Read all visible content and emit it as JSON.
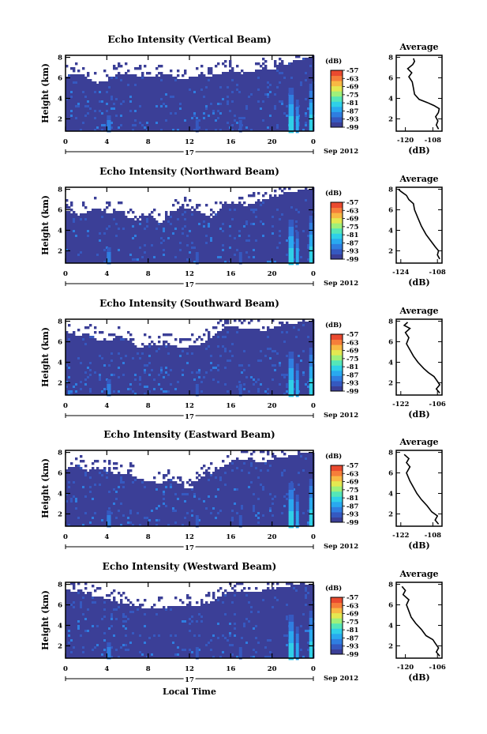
{
  "colors": {
    "colormap": [
      "#3b3f97",
      "#3559c0",
      "#2f7ee0",
      "#29a9ef",
      "#2fd0e8",
      "#55e6b8",
      "#9ff07a",
      "#e4e851",
      "#f8b944",
      "#f67e3a",
      "#ea4a2f"
    ],
    "background": "#ffffff",
    "axis": "#000000"
  },
  "date_label": "Sep 2012",
  "xlabel_bottom": "Local Time",
  "chart_data": [
    {
      "id": "vertical",
      "type": "heatmap",
      "title": "Echo Intensity (Vertical Beam)",
      "ylabel": "Height (km)",
      "x_ticks": [
        "0",
        "4",
        "8",
        "12",
        "16",
        "20",
        "0"
      ],
      "x_range_hours": [
        0,
        24
      ],
      "day_label": "17",
      "y_ticks": [
        "2",
        "4",
        "6",
        "8"
      ],
      "ylim": [
        0.8,
        8.2
      ],
      "colorbar": {
        "unit": "(dB)",
        "ticks": [
          "-57",
          "-63",
          "-69",
          "-75",
          "-81",
          "-87",
          "-93",
          "-99"
        ],
        "range": [
          -99,
          -57
        ]
      },
      "echo_top_km": [
        [
          0,
          6.2
        ],
        [
          1,
          6.4
        ],
        [
          2,
          6.0
        ],
        [
          3,
          5.5
        ],
        [
          4,
          5.8
        ],
        [
          5,
          6.5
        ],
        [
          6,
          6.3
        ],
        [
          7,
          6.2
        ],
        [
          8,
          6.0
        ],
        [
          9,
          6.2
        ],
        [
          10,
          6.4
        ],
        [
          11,
          5.8
        ],
        [
          12,
          6.0
        ],
        [
          13,
          6.3
        ],
        [
          14,
          6.1
        ],
        [
          15,
          6.5
        ],
        [
          16,
          6.8
        ],
        [
          17,
          6.4
        ],
        [
          18,
          6.6
        ],
        [
          19,
          7.0
        ],
        [
          20,
          6.8
        ],
        [
          21,
          7.2
        ],
        [
          22,
          7.6
        ],
        [
          23,
          7.9
        ],
        [
          24,
          8.0
        ]
      ],
      "average": {
        "title": "Average",
        "xlabel": "(dB)",
        "x_ticks": [
          "-120",
          "-108"
        ],
        "xlim": [
          -124,
          -104
        ],
        "y_ticks": [
          "2",
          "4",
          "6",
          "8"
        ],
        "ylim": [
          0.8,
          8.2
        ],
        "profile": [
          [
            -105.5,
            1.0
          ],
          [
            -106.5,
            1.4
          ],
          [
            -105.8,
            1.8
          ],
          [
            -106.8,
            2.2
          ],
          [
            -105.6,
            2.6
          ],
          [
            -105.2,
            3.0
          ],
          [
            -107.5,
            3.3
          ],
          [
            -110.5,
            3.6
          ],
          [
            -114,
            3.9
          ],
          [
            -116,
            4.4
          ],
          [
            -116.5,
            5.0
          ],
          [
            -117,
            5.6
          ],
          [
            -118.5,
            6.1
          ],
          [
            -117.2,
            6.5
          ],
          [
            -119,
            6.9
          ],
          [
            -116.8,
            7.3
          ],
          [
            -116,
            7.6
          ],
          [
            -116.5,
            7.9
          ]
        ]
      }
    },
    {
      "id": "northward",
      "type": "heatmap",
      "title": "Echo Intensity (Northward Beam)",
      "ylabel": "Height (km)",
      "x_ticks": [
        "0",
        "4",
        "8",
        "12",
        "16",
        "20",
        "0"
      ],
      "x_range_hours": [
        0,
        24
      ],
      "day_label": "17",
      "y_ticks": [
        "2",
        "4",
        "6",
        "8"
      ],
      "ylim": [
        0.8,
        8.2
      ],
      "colorbar": {
        "unit": "(dB)",
        "ticks": [
          "-57",
          "-63",
          "-69",
          "-75",
          "-81",
          "-87",
          "-93",
          "-99"
        ],
        "range": [
          -99,
          -57
        ]
      },
      "echo_top_km": [
        [
          0,
          6.0
        ],
        [
          1,
          5.4
        ],
        [
          2,
          5.8
        ],
        [
          3,
          6.2
        ],
        [
          4,
          5.6
        ],
        [
          5,
          6.0
        ],
        [
          6,
          5.2
        ],
        [
          7,
          5.0
        ],
        [
          8,
          5.6
        ],
        [
          9,
          4.6
        ],
        [
          10,
          5.5
        ],
        [
          11,
          6.4
        ],
        [
          12,
          6.0
        ],
        [
          13,
          5.7
        ],
        [
          14,
          5.2
        ],
        [
          15,
          6.2
        ],
        [
          16,
          6.8
        ],
        [
          17,
          6.3
        ],
        [
          18,
          6.6
        ],
        [
          19,
          7.0
        ],
        [
          20,
          7.2
        ],
        [
          21,
          7.6
        ],
        [
          22,
          7.8
        ],
        [
          23,
          8.0
        ],
        [
          24,
          8.0
        ]
      ],
      "average": {
        "title": "Average",
        "xlabel": "(dB)",
        "x_ticks": [
          "-124",
          "-108"
        ],
        "xlim": [
          -126,
          -106
        ],
        "y_ticks": [
          "2",
          "4",
          "6",
          "8"
        ],
        "ylim": [
          0.8,
          8.2
        ],
        "profile": [
          [
            -107,
            1.2
          ],
          [
            -108,
            1.6
          ],
          [
            -107.5,
            2.0
          ],
          [
            -109,
            2.4
          ],
          [
            -111,
            3.0
          ],
          [
            -113,
            3.6
          ],
          [
            -115,
            4.4
          ],
          [
            -116.5,
            5.2
          ],
          [
            -118,
            6.0
          ],
          [
            -118.5,
            6.6
          ],
          [
            -120.5,
            7.0
          ],
          [
            -121.5,
            7.4
          ],
          [
            -124,
            7.8
          ],
          [
            -125,
            8.0
          ]
        ]
      }
    },
    {
      "id": "southward",
      "type": "heatmap",
      "title": "Echo Intensity (Southward Beam)",
      "ylabel": "Height (km)",
      "x_ticks": [
        "0",
        "4",
        "8",
        "12",
        "16",
        "20",
        "0"
      ],
      "x_range_hours": [
        0,
        24
      ],
      "day_label": "17",
      "y_ticks": [
        "2",
        "4",
        "6",
        "8"
      ],
      "ylim": [
        0.8,
        8.2
      ],
      "colorbar": {
        "unit": "(dB)",
        "ticks": [
          "-57",
          "-63",
          "-69",
          "-75",
          "-81",
          "-87",
          "-93",
          "-99"
        ],
        "range": [
          -99,
          -57
        ]
      },
      "echo_top_km": [
        [
          0,
          7.0
        ],
        [
          1,
          6.6
        ],
        [
          2,
          6.8
        ],
        [
          3,
          6.2
        ],
        [
          4,
          6.0
        ],
        [
          5,
          6.6
        ],
        [
          6,
          6.2
        ],
        [
          7,
          5.4
        ],
        [
          8,
          5.8
        ],
        [
          9,
          5.6
        ],
        [
          10,
          5.8
        ],
        [
          11,
          5.4
        ],
        [
          12,
          5.6
        ],
        [
          13,
          5.8
        ],
        [
          14,
          6.4
        ],
        [
          15,
          7.2
        ],
        [
          16,
          7.6
        ],
        [
          17,
          7.2
        ],
        [
          18,
          7.4
        ],
        [
          19,
          7.0
        ],
        [
          20,
          7.4
        ],
        [
          21,
          7.7
        ],
        [
          22,
          7.8
        ],
        [
          23,
          8.0
        ],
        [
          24,
          8.0
        ]
      ],
      "average": {
        "title": "Average",
        "xlabel": "(dB)",
        "x_ticks": [
          "-122",
          "-106"
        ],
        "xlim": [
          -124,
          -104
        ],
        "y_ticks": [
          "2",
          "4",
          "6",
          "8"
        ],
        "ylim": [
          0.8,
          8.2
        ],
        "profile": [
          [
            -105,
            1.0
          ],
          [
            -106.5,
            1.4
          ],
          [
            -105,
            1.8
          ],
          [
            -106.2,
            2.2
          ],
          [
            -107.5,
            2.6
          ],
          [
            -110,
            3.0
          ],
          [
            -112,
            3.4
          ],
          [
            -114.5,
            4.0
          ],
          [
            -116.5,
            4.6
          ],
          [
            -118,
            5.2
          ],
          [
            -119.5,
            5.8
          ],
          [
            -118.5,
            6.4
          ],
          [
            -120,
            6.9
          ],
          [
            -118,
            7.3
          ],
          [
            -120.5,
            7.6
          ],
          [
            -119,
            7.9
          ]
        ]
      }
    },
    {
      "id": "eastward",
      "type": "heatmap",
      "title": "Echo Intensity (Eastward Beam)",
      "ylabel": "Height (km)",
      "x_ticks": [
        "0",
        "4",
        "8",
        "12",
        "16",
        "20",
        "0"
      ],
      "x_range_hours": [
        0,
        24
      ],
      "day_label": "17",
      "y_ticks": [
        "2",
        "4",
        "6",
        "8"
      ],
      "ylim": [
        0.8,
        8.2
      ],
      "colorbar": {
        "unit": "(dB)",
        "ticks": [
          "-57",
          "-63",
          "-69",
          "-75",
          "-81",
          "-87",
          "-93",
          "-99"
        ],
        "range": [
          -99,
          -57
        ]
      },
      "echo_top_km": [
        [
          0,
          6.4
        ],
        [
          1,
          6.8
        ],
        [
          2,
          6.2
        ],
        [
          3,
          6.5
        ],
        [
          4,
          6.2
        ],
        [
          5,
          5.8
        ],
        [
          6,
          6.0
        ],
        [
          7,
          5.4
        ],
        [
          8,
          5.2
        ],
        [
          9,
          5.0
        ],
        [
          10,
          5.4
        ],
        [
          11,
          4.8
        ],
        [
          12,
          4.4
        ],
        [
          13,
          5.6
        ],
        [
          14,
          6.0
        ],
        [
          15,
          6.6
        ],
        [
          16,
          7.0
        ],
        [
          17,
          7.4
        ],
        [
          18,
          7.2
        ],
        [
          19,
          7.0
        ],
        [
          20,
          7.4
        ],
        [
          21,
          7.5
        ],
        [
          22,
          7.8
        ],
        [
          23,
          8.0
        ],
        [
          24,
          8.0
        ]
      ],
      "average": {
        "title": "Average",
        "xlabel": "(dB)",
        "x_ticks": [
          "-122",
          "-108"
        ],
        "xlim": [
          -124,
          -104
        ],
        "y_ticks": [
          "2",
          "4",
          "6",
          "8"
        ],
        "ylim": [
          0.8,
          8.2
        ],
        "profile": [
          [
            -105.5,
            1.0
          ],
          [
            -107,
            1.4
          ],
          [
            -106,
            1.8
          ],
          [
            -108.5,
            2.2
          ],
          [
            -110.5,
            2.8
          ],
          [
            -113,
            3.4
          ],
          [
            -115,
            4.0
          ],
          [
            -116.5,
            4.6
          ],
          [
            -118,
            5.2
          ],
          [
            -119.5,
            6.0
          ],
          [
            -118,
            6.6
          ],
          [
            -119.5,
            7.0
          ],
          [
            -118.5,
            7.4
          ],
          [
            -120.5,
            7.8
          ]
        ]
      }
    },
    {
      "id": "westward",
      "type": "heatmap",
      "title": "Echo Intensity (Westward Beam)",
      "ylabel": "Height (km)",
      "x_ticks": [
        "0",
        "4",
        "8",
        "12",
        "16",
        "20",
        "0"
      ],
      "x_range_hours": [
        0,
        24
      ],
      "day_label": "17",
      "y_ticks": [
        "2",
        "4",
        "6",
        "8"
      ],
      "ylim": [
        0.8,
        8.2
      ],
      "colorbar": {
        "unit": "(dB)",
        "ticks": [
          "-57",
          "-63",
          "-69",
          "-75",
          "-81",
          "-87",
          "-93",
          "-99"
        ],
        "range": [
          -99,
          -57
        ]
      },
      "echo_top_km": [
        [
          0,
          7.2
        ],
        [
          1,
          7.4
        ],
        [
          2,
          7.0
        ],
        [
          3,
          6.8
        ],
        [
          4,
          6.6
        ],
        [
          5,
          6.2
        ],
        [
          6,
          6.0
        ],
        [
          7,
          5.8
        ],
        [
          8,
          5.6
        ],
        [
          9,
          5.7
        ],
        [
          10,
          5.8
        ],
        [
          11,
          5.8
        ],
        [
          12,
          5.9
        ],
        [
          13,
          6.0
        ],
        [
          14,
          6.2
        ],
        [
          15,
          7.0
        ],
        [
          16,
          7.2
        ],
        [
          17,
          7.4
        ],
        [
          18,
          7.2
        ],
        [
          19,
          7.4
        ],
        [
          20,
          7.6
        ],
        [
          21,
          7.7
        ],
        [
          22,
          7.9
        ],
        [
          23,
          8.0
        ],
        [
          24,
          8.0
        ]
      ],
      "average": {
        "title": "Average",
        "xlabel": "(dB)",
        "x_ticks": [
          "-120",
          "-106"
        ],
        "xlim": [
          -124,
          -104
        ],
        "y_ticks": [
          "2",
          "4",
          "6",
          "8"
        ],
        "ylim": [
          0.8,
          8.2
        ],
        "profile": [
          [
            -105,
            1.0
          ],
          [
            -106.5,
            1.4
          ],
          [
            -105.5,
            1.8
          ],
          [
            -106.8,
            2.2
          ],
          [
            -108,
            2.6
          ],
          [
            -111,
            3.0
          ],
          [
            -113,
            3.6
          ],
          [
            -115.5,
            4.2
          ],
          [
            -117.5,
            4.8
          ],
          [
            -118.5,
            5.4
          ],
          [
            -119.5,
            6.0
          ],
          [
            -118.5,
            6.5
          ],
          [
            -121,
            7.0
          ],
          [
            -120,
            7.4
          ],
          [
            -121.5,
            7.8
          ]
        ]
      }
    }
  ]
}
